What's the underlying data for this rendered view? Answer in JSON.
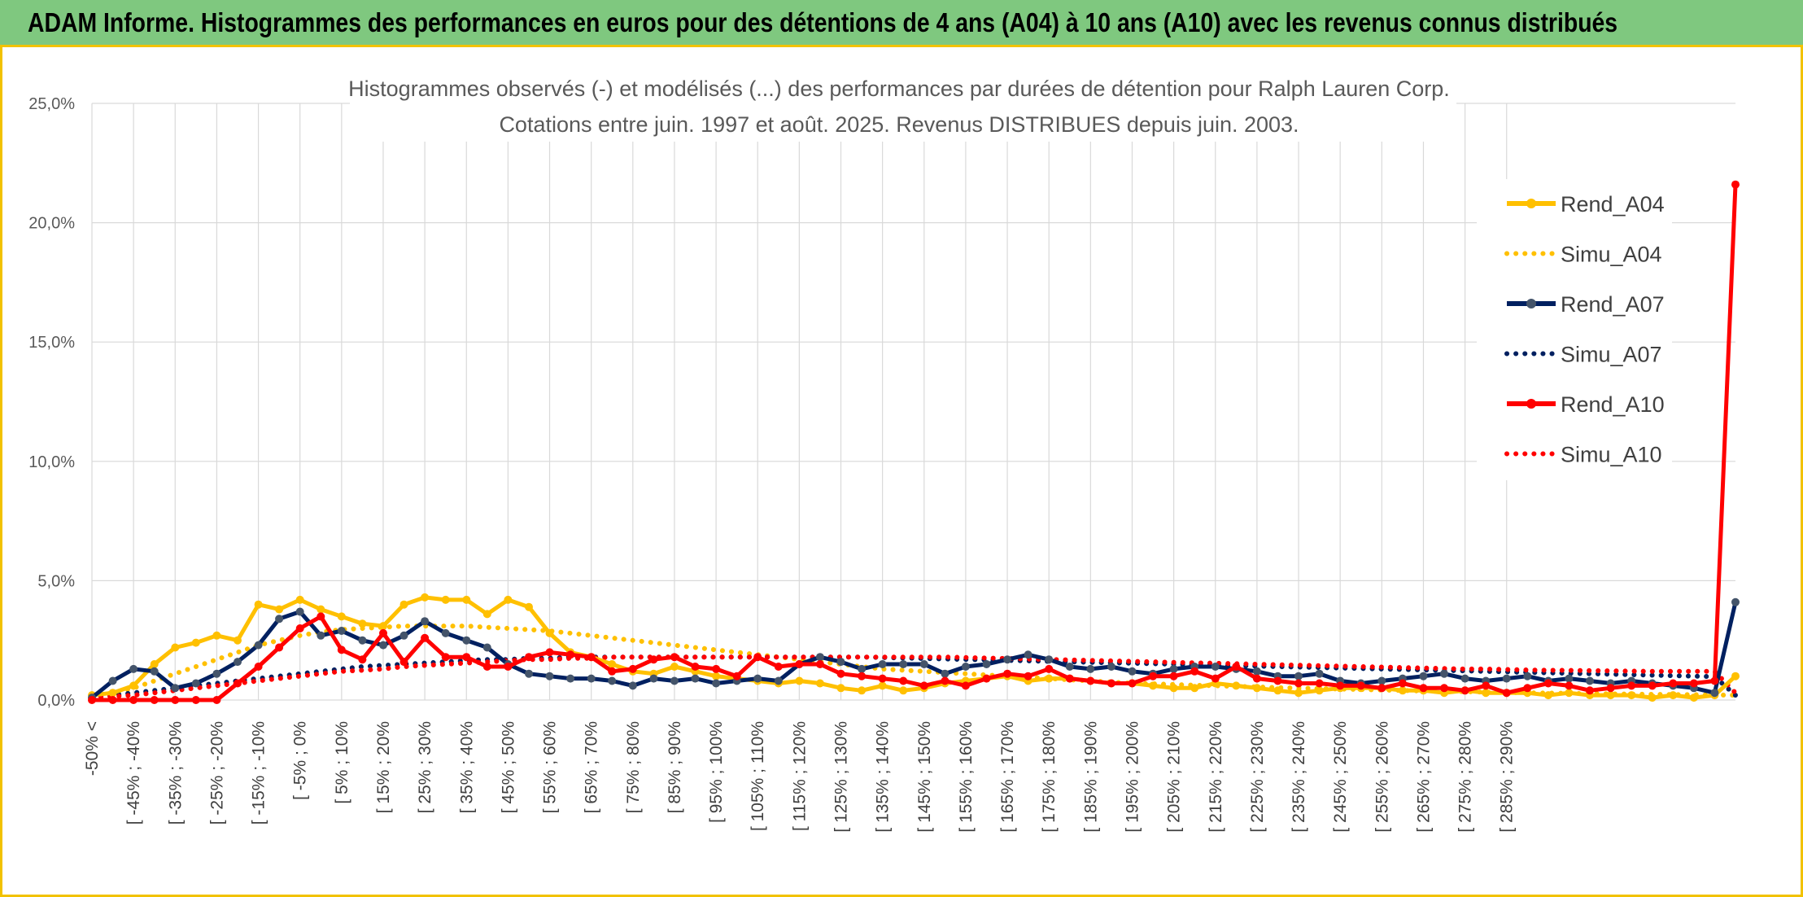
{
  "header": {
    "title": "ADAM Informe. Histogrammes des performances en euros pour des détentions de 4 ans (A04) à 10 ans (A10) avec les revenus connus distribués"
  },
  "chart_data": {
    "type": "line",
    "title": "Histogrammes observés (-) et modélisés (...) des performances par durées de détention pour Ralph Lauren Corp.",
    "subtitle": "Cotations entre juin. 1997 et août. 2025. Revenus DISTRIBUES depuis juin. 2003.",
    "xlabel": "",
    "ylabel": "",
    "ylim": [
      0,
      25
    ],
    "yticks": [
      "0,0%",
      "5,0%",
      "10,0%",
      "15,0%",
      "20,0%",
      "25,0%"
    ],
    "grid": true,
    "legend_position": "right",
    "x_tick_labels": [
      "-50% <",
      "[ -45% ; -40%",
      "[ -35% ; -30%",
      "[ -25% ; -20%",
      "[ -15% ; -10%",
      "[ -5% ; 0%",
      "[ 5% ; 10%",
      "[ 15% ; 20%",
      "[ 25% ; 30%",
      "[ 35% ; 40%",
      "[ 45% ; 50%",
      "[ 55% ; 60%",
      "[ 65% ; 70%",
      "[ 75% ; 80%",
      "[ 85% ; 90%",
      "[ 95% ; 100%",
      "[ 105% ; 110%",
      "[ 115% ; 120%",
      "[ 125% ; 130%",
      "[ 135% ; 140%",
      "[ 145% ; 150%",
      "[ 155% ; 160%",
      "[ 165% ; 170%",
      "[ 175% ; 180%",
      "[ 185% ; 190%",
      "[ 195% ; 200%",
      "[ 205% ; 210%",
      "[ 215% ; 220%",
      "[ 225% ; 230%",
      "[ 235% ; 240%",
      "[ 245% ; 250%",
      "[ 255% ; 260%",
      "[ 265% ; 270%",
      "[ 275% ; 280%",
      "[ 285% ; 290%"
    ],
    "series": [
      {
        "name": "Rend_A04",
        "color": "#ffc000",
        "style": "solid",
        "markers": true,
        "values": [
          0.2,
          0.3,
          0.6,
          1.5,
          2.2,
          2.4,
          2.7,
          2.5,
          4.0,
          3.8,
          4.2,
          3.8,
          3.5,
          3.2,
          3.1,
          4.0,
          4.3,
          4.2,
          4.2,
          3.6,
          4.2,
          3.9,
          2.8,
          2.0,
          1.8,
          1.5,
          1.2,
          1.1,
          1.4,
          1.2,
          1.0,
          0.9,
          0.8,
          0.7,
          0.8,
          0.7,
          0.5,
          0.4,
          0.6,
          0.4,
          0.5,
          0.7,
          0.8,
          0.9,
          1.0,
          0.8,
          0.9,
          0.9,
          0.8,
          0.7,
          0.7,
          0.6,
          0.5,
          0.5,
          0.7,
          0.6,
          0.5,
          0.4,
          0.3,
          0.4,
          0.5,
          0.5,
          0.5,
          0.4,
          0.4,
          0.3,
          0.4,
          0.3,
          0.3,
          0.3,
          0.2,
          0.3,
          0.2,
          0.2,
          0.2,
          0.1,
          0.2,
          0.1,
          0.2,
          1.0
        ]
      },
      {
        "name": "Simu_A04",
        "color": "#ffc000",
        "style": "dotted",
        "markers": false,
        "values": [
          0.2,
          0.3,
          0.5,
          0.8,
          1.1,
          1.4,
          1.7,
          2.0,
          2.3,
          2.5,
          2.7,
          2.85,
          2.95,
          3.0,
          3.05,
          3.1,
          3.1,
          3.1,
          3.1,
          3.05,
          3.0,
          2.95,
          2.9,
          2.8,
          2.7,
          2.6,
          2.5,
          2.4,
          2.3,
          2.2,
          2.1,
          2.0,
          1.9,
          1.8,
          1.7,
          1.6,
          1.5,
          1.4,
          1.3,
          1.25,
          1.2,
          1.15,
          1.1,
          1.05,
          1.0,
          0.95,
          0.9,
          0.85,
          0.8,
          0.75,
          0.7,
          0.68,
          0.65,
          0.62,
          0.6,
          0.57,
          0.55,
          0.52,
          0.5,
          0.48,
          0.46,
          0.44,
          0.42,
          0.4,
          0.38,
          0.36,
          0.35,
          0.33,
          0.32,
          0.3,
          0.29,
          0.28,
          0.27,
          0.26,
          0.25,
          0.24,
          0.23,
          0.22,
          0.21,
          0.2
        ]
      },
      {
        "name": "Rend_A07",
        "color": "#002060",
        "style": "solid",
        "markers": true,
        "values": [
          0.1,
          0.8,
          1.3,
          1.2,
          0.5,
          0.7,
          1.1,
          1.6,
          2.3,
          3.4,
          3.7,
          2.7,
          2.9,
          2.5,
          2.3,
          2.7,
          3.3,
          2.8,
          2.5,
          2.2,
          1.5,
          1.1,
          1.0,
          0.9,
          0.9,
          0.8,
          0.6,
          0.9,
          0.8,
          0.9,
          0.7,
          0.8,
          0.9,
          0.8,
          1.5,
          1.8,
          1.6,
          1.3,
          1.5,
          1.5,
          1.5,
          1.1,
          1.4,
          1.5,
          1.7,
          1.9,
          1.7,
          1.4,
          1.3,
          1.4,
          1.2,
          1.1,
          1.3,
          1.4,
          1.4,
          1.3,
          1.2,
          1.0,
          1.0,
          1.1,
          0.8,
          0.7,
          0.8,
          0.9,
          1.0,
          1.1,
          0.9,
          0.8,
          0.9,
          1.0,
          0.8,
          0.9,
          0.8,
          0.7,
          0.8,
          0.7,
          0.6,
          0.5,
          0.3,
          4.1
        ]
      },
      {
        "name": "Simu_A07",
        "color": "#002060",
        "style": "dotted",
        "markers": false,
        "values": [
          0.1,
          0.2,
          0.3,
          0.4,
          0.5,
          0.6,
          0.7,
          0.8,
          0.9,
          1.0,
          1.1,
          1.2,
          1.3,
          1.4,
          1.45,
          1.5,
          1.55,
          1.6,
          1.65,
          1.7,
          1.7,
          1.75,
          1.75,
          1.8,
          1.8,
          1.8,
          1.8,
          1.8,
          1.8,
          1.8,
          1.8,
          1.8,
          1.8,
          1.8,
          1.8,
          1.8,
          1.8,
          1.8,
          1.78,
          1.76,
          1.74,
          1.72,
          1.7,
          1.68,
          1.66,
          1.64,
          1.62,
          1.6,
          1.58,
          1.56,
          1.54,
          1.52,
          1.5,
          1.48,
          1.46,
          1.44,
          1.42,
          1.4,
          1.38,
          1.36,
          1.34,
          1.32,
          1.3,
          1.28,
          1.26,
          1.24,
          1.22,
          1.2,
          1.18,
          1.16,
          1.14,
          1.12,
          1.1,
          1.08,
          1.06,
          1.04,
          1.02,
          1.0,
          0.98,
          0.2
        ]
      },
      {
        "name": "Rend_A10",
        "color": "#ff0000",
        "style": "solid",
        "markers": true,
        "values": [
          0.0,
          0.0,
          0.0,
          0.0,
          0.0,
          0.0,
          0.0,
          0.7,
          1.4,
          2.2,
          3.0,
          3.5,
          2.1,
          1.7,
          2.8,
          1.6,
          2.6,
          1.8,
          1.8,
          1.4,
          1.4,
          1.8,
          2.0,
          1.9,
          1.8,
          1.2,
          1.3,
          1.7,
          1.8,
          1.4,
          1.3,
          1.0,
          1.8,
          1.4,
          1.5,
          1.5,
          1.1,
          1.0,
          0.9,
          0.8,
          0.6,
          0.8,
          0.6,
          0.9,
          1.1,
          1.0,
          1.3,
          0.9,
          0.8,
          0.7,
          0.7,
          1.0,
          1.0,
          1.2,
          0.9,
          1.4,
          0.9,
          0.8,
          0.7,
          0.7,
          0.6,
          0.6,
          0.5,
          0.7,
          0.5,
          0.5,
          0.4,
          0.6,
          0.3,
          0.5,
          0.7,
          0.6,
          0.4,
          0.5,
          0.6,
          0.6,
          0.7,
          0.7,
          0.8,
          21.6
        ]
      },
      {
        "name": "Simu_A10",
        "color": "#ff0000",
        "style": "dotted",
        "markers": false,
        "values": [
          0.1,
          0.15,
          0.2,
          0.3,
          0.4,
          0.5,
          0.6,
          0.7,
          0.8,
          0.9,
          1.0,
          1.1,
          1.2,
          1.25,
          1.3,
          1.4,
          1.45,
          1.5,
          1.55,
          1.6,
          1.65,
          1.7,
          1.7,
          1.75,
          1.75,
          1.8,
          1.8,
          1.8,
          1.8,
          1.8,
          1.8,
          1.8,
          1.8,
          1.8,
          1.8,
          1.8,
          1.8,
          1.8,
          1.8,
          1.8,
          1.8,
          1.8,
          1.78,
          1.76,
          1.74,
          1.72,
          1.7,
          1.68,
          1.66,
          1.64,
          1.62,
          1.6,
          1.58,
          1.56,
          1.54,
          1.52,
          1.5,
          1.48,
          1.46,
          1.44,
          1.42,
          1.4,
          1.38,
          1.36,
          1.34,
          1.32,
          1.3,
          1.3,
          1.28,
          1.26,
          1.25,
          1.24,
          1.23,
          1.22,
          1.21,
          1.2,
          1.2,
          1.2,
          1.2,
          0.3
        ]
      }
    ]
  }
}
